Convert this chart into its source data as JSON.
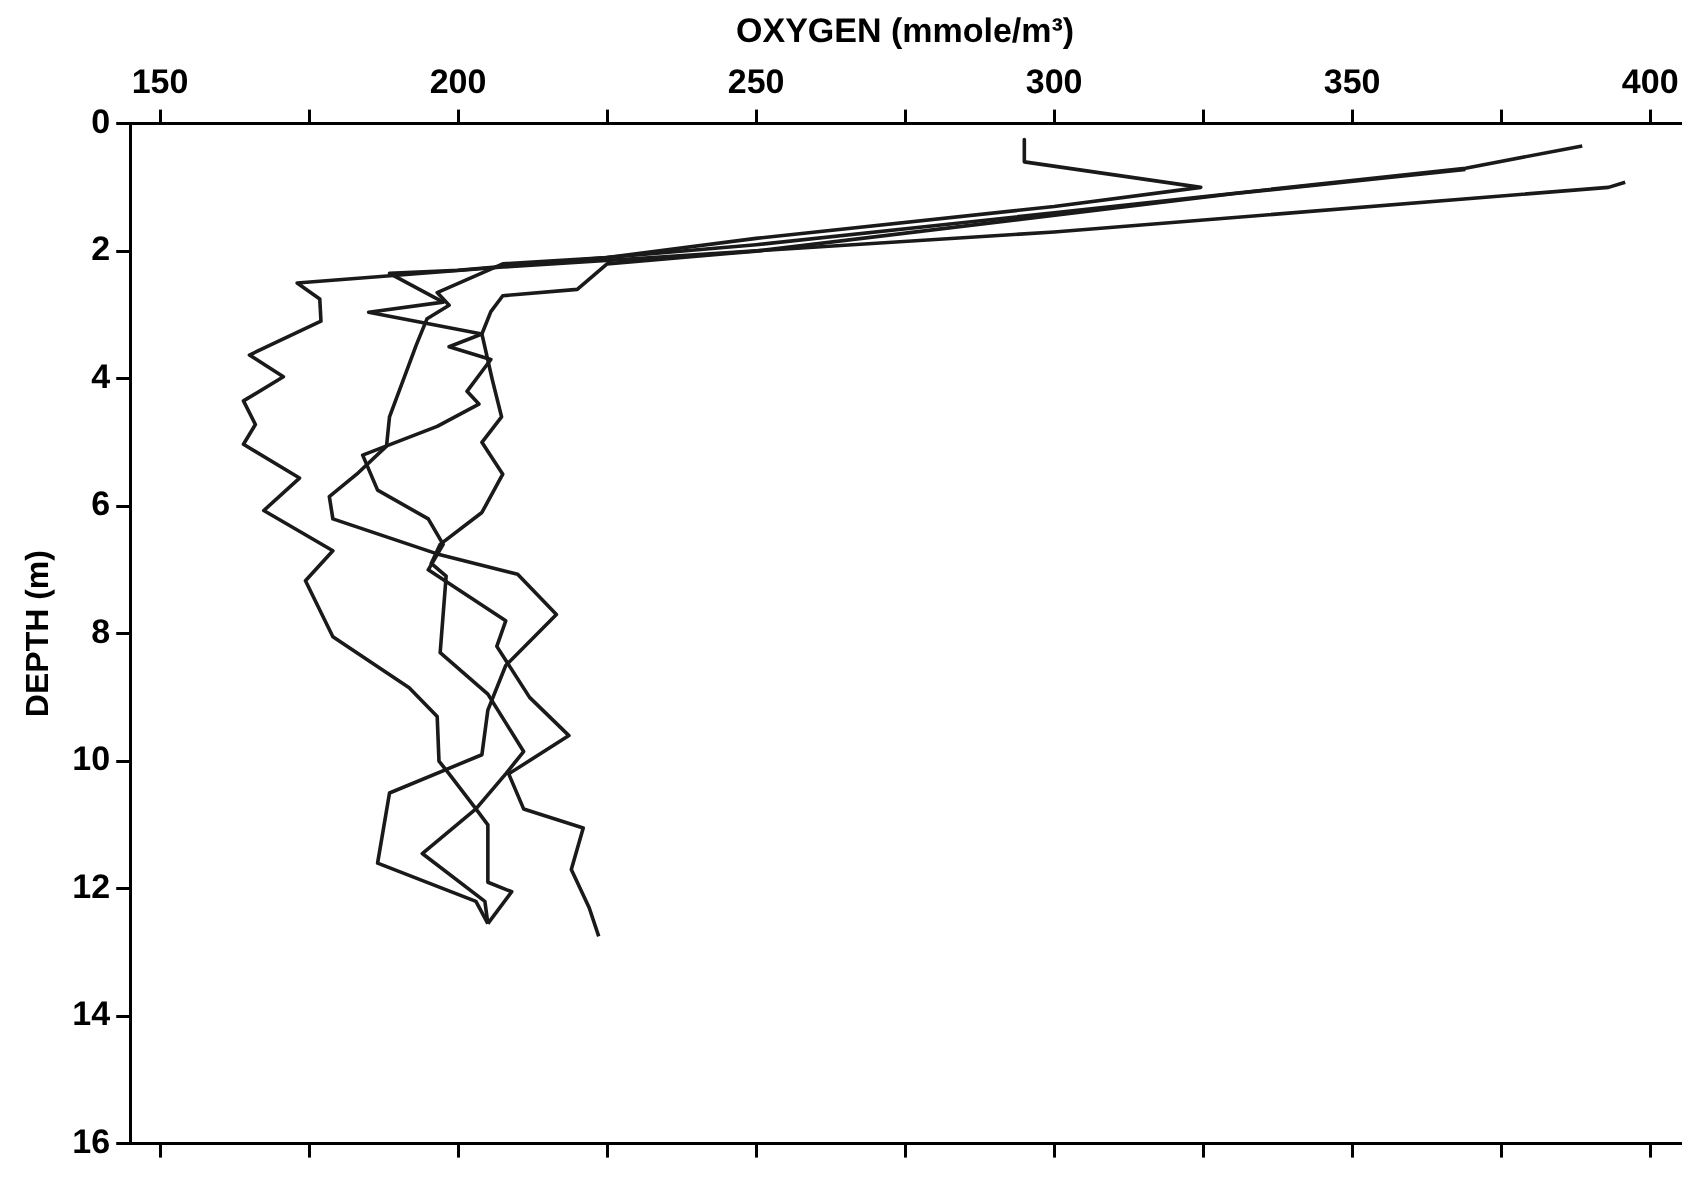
{
  "chart_data": {
    "type": "line",
    "xlabel": "OXYGEN (mmole/m³)",
    "ylabel": "DEPTH (m)",
    "xlim": [
      145,
      405
    ],
    "xticks": [
      150,
      {
        "value": 175,
        "label": null
      },
      200,
      {
        "value": 225,
        "label": null
      },
      250,
      {
        "value": 275,
        "label": null
      },
      300,
      {
        "value": 325,
        "label": null
      },
      350,
      {
        "value": 375,
        "label": null
      },
      400
    ],
    "ylim": [
      16,
      0
    ],
    "yticks": [
      0,
      2,
      4,
      6,
      8,
      10,
      12,
      14,
      16
    ],
    "grid": false,
    "legend": false,
    "marker": "none",
    "line_style": "solid",
    "series": [
      {
        "color": "#1a1a1a",
        "x": [
          395.8,
          393,
          300,
          207.5,
          173,
          176.8,
          177,
          165,
          170.7,
          164,
          166,
          164,
          173.4,
          167.4,
          179,
          174.4,
          179,
          191.8,
          196.5,
          196.8,
          198.5,
          203,
          205,
          205,
          209,
          205
        ],
        "values": [
          0.92,
          1.0,
          1.7,
          2.25,
          2.5,
          2.75,
          3.1,
          3.63,
          3.97,
          4.35,
          4.72,
          5.03,
          5.56,
          6.07,
          6.7,
          7.17,
          8.05,
          8.85,
          9.3,
          10.0,
          10.2,
          10.75,
          11.0,
          11.9,
          12.05,
          12.55
        ]
      },
      {
        "color": "#1a1a1a",
        "x": [
          295,
          295,
          324.6,
          300,
          250,
          225,
          207.5,
          196.5,
          198.5,
          194.8,
          193,
          188.5,
          188,
          183,
          178.4,
          179,
          196.5,
          210,
          216.5,
          208,
          205,
          204,
          188.5,
          186.5,
          203,
          205
        ],
        "values": [
          0.25,
          0.6,
          1.0,
          1.3,
          1.8,
          2.1,
          2.2,
          2.65,
          2.85,
          3.06,
          3.47,
          4.6,
          5.06,
          5.5,
          5.85,
          6.2,
          6.75,
          7.07,
          7.7,
          8.5,
          9.2,
          9.9,
          10.5,
          11.6,
          12.2,
          12.55
        ]
      },
      {
        "color": "#1a1a1a",
        "x": [
          388.6,
          369,
          300,
          250,
          200,
          188.5,
          197.5,
          185,
          204,
          198.5,
          205.5,
          201.5,
          203.5,
          196.5,
          184,
          186.5,
          195,
          197.5,
          195,
          208,
          206.5,
          212,
          218.6,
          208.5,
          211,
          221,
          219,
          222,
          223.6
        ],
        "values": [
          0.35,
          0.7,
          1.4,
          1.9,
          2.3,
          2.35,
          2.8,
          2.96,
          3.3,
          3.5,
          3.7,
          4.2,
          4.4,
          4.75,
          5.2,
          5.75,
          6.2,
          6.6,
          7.0,
          7.8,
          8.2,
          9.0,
          9.6,
          10.2,
          10.75,
          11.05,
          11.7,
          12.3,
          12.75
        ]
      },
      {
        "color": "#1a1a1a",
        "x": [
          369,
          330,
          250,
          225,
          220,
          207.5,
          205.5,
          204,
          205.7,
          207.3,
          204,
          207.5,
          204,
          197,
          195.5,
          198,
          197,
          205,
          211,
          208,
          203,
          194,
          204.5,
          205
        ],
        "values": [
          0.72,
          1.1,
          2.0,
          2.2,
          2.6,
          2.7,
          2.95,
          3.3,
          4.0,
          4.6,
          5.0,
          5.5,
          6.1,
          6.6,
          6.9,
          7.1,
          8.3,
          8.95,
          9.85,
          10.2,
          10.75,
          11.45,
          12.2,
          12.55
        ]
      }
    ]
  }
}
